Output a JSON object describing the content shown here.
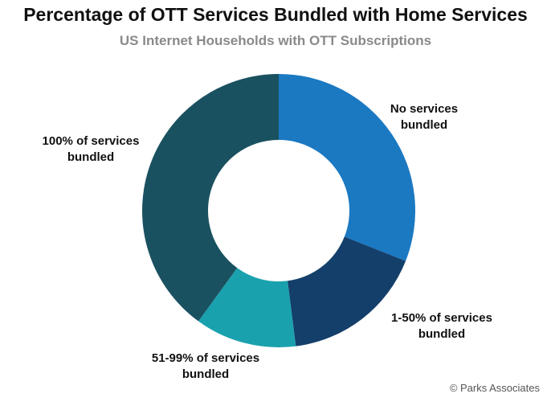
{
  "chart_data": {
    "type": "donut",
    "title": "Percentage of OTT Services Bundled with Home Services",
    "subtitle": "US Internet Households with OTT Subscriptions",
    "categories": [
      "No services bundled",
      "1-50% of services bundled",
      "51-99% of services bundled",
      "100% of services bundled"
    ],
    "values": [
      31,
      17,
      12,
      40
    ],
    "colors": [
      "#1b79c2",
      "#143f6a",
      "#1aa1ae",
      "#1a5160"
    ],
    "source": "© Parks Associates"
  }
}
